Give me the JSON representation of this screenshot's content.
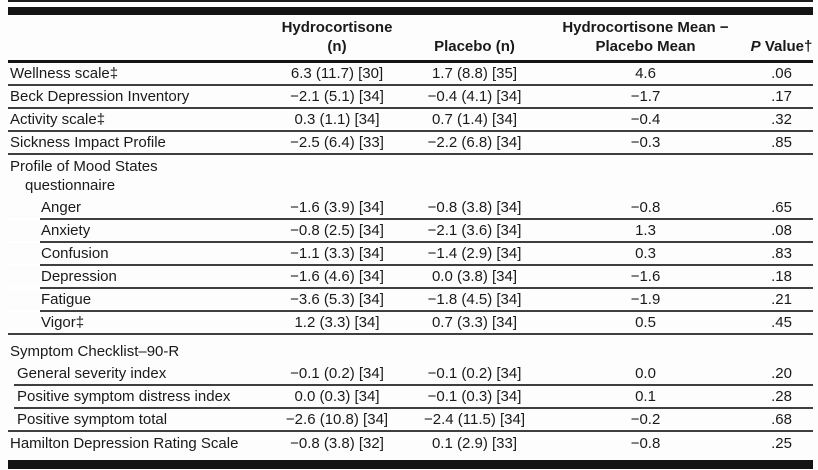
{
  "table": {
    "header": {
      "hydrocortisone_line1": "Hydrocortisone",
      "hydrocortisone_line2": "(n)",
      "placebo": "Placebo (n)",
      "diff_line1": "Hydrocortisone Mean −",
      "diff_line2": "Placebo Mean",
      "pvalue_p": "P",
      "pvalue_rest": " Value†"
    },
    "rows": [
      {
        "label": "Wellness scale‡",
        "indent": 0,
        "hydro": "6.3 (11.7) [30]",
        "placebo": "1.7 (8.8) [35]",
        "diff": "4.6",
        "p": ".06",
        "sep": "full"
      },
      {
        "label": "Beck Depression Inventory",
        "indent": 0,
        "hydro": "−2.1 (5.1) [34]",
        "placebo": "−0.4 (4.1) [34]",
        "diff": "−1.7",
        "p": ".17",
        "sep": "full"
      },
      {
        "label": "Activity scale‡",
        "indent": 0,
        "hydro": "0.3 (1.1) [34]",
        "placebo": "0.7 (1.4) [34]",
        "diff": "−0.4",
        "p": ".32",
        "sep": "full"
      },
      {
        "label": "Sickness Impact Profile",
        "indent": 0,
        "hydro": "−2.5 (6.4) [33]",
        "placebo": "−2.2 (6.8) [34]",
        "diff": "−0.3",
        "p": ".85",
        "sep": "full"
      },
      {
        "type": "group",
        "label": "Profile of Mood States",
        "label2": "questionnaire",
        "sep": "none"
      },
      {
        "label": "Anger",
        "indent": 2,
        "hydro": "−1.6 (3.9) [34]",
        "placebo": "−0.8 (3.8) [34]",
        "diff": "−0.8",
        "p": ".65",
        "sep": "indent2"
      },
      {
        "label": "Anxiety",
        "indent": 2,
        "hydro": "−0.8 (2.5) [34]",
        "placebo": "−2.1 (3.6) [34]",
        "diff": "1.3",
        "p": ".08",
        "sep": "indent2"
      },
      {
        "label": "Confusion",
        "indent": 2,
        "hydro": "−1.1 (3.3) [34]",
        "placebo": "−1.4 (2.9) [34]",
        "diff": "0.3",
        "p": ".83",
        "sep": "indent2"
      },
      {
        "label": "Depression",
        "indent": 2,
        "hydro": "−1.6 (4.6) [34]",
        "placebo": "0.0 (3.8) [34]",
        "diff": "−1.6",
        "p": ".18",
        "sep": "indent2"
      },
      {
        "label": "Fatigue",
        "indent": 2,
        "hydro": "−3.6 (5.3) [34]",
        "placebo": "−1.8 (4.5) [34]",
        "diff": "−1.9",
        "p": ".21",
        "sep": "indent2"
      },
      {
        "label": "Vigor‡",
        "indent": 2,
        "hydro": "1.2 (3.3) [34]",
        "placebo": "0.7 (3.3) [34]",
        "diff": "0.5",
        "p": ".45",
        "sep": "full"
      },
      {
        "type": "group",
        "label": "Symptom Checklist–90-R",
        "sep": "none"
      },
      {
        "label": "General severity index",
        "indent": 1,
        "hydro": "−0.1 (0.2) [34]",
        "placebo": "−0.1 (0.2) [34]",
        "diff": "0.0",
        "p": ".20",
        "sep": "indent1"
      },
      {
        "label": "Positive symptom distress index",
        "indent": 1,
        "hydro": "0.0 (0.3) [34]",
        "placebo": "−0.1 (0.3) [34]",
        "diff": "0.1",
        "p": ".28",
        "sep": "indent1"
      },
      {
        "label": "Positive symptom total",
        "indent": 1,
        "hydro": "−2.6 (10.8) [34]",
        "placebo": "−2.4 (11.5) [34]",
        "diff": "−0.2",
        "p": ".68",
        "sep": "full"
      },
      {
        "label": "Hamilton Depression Rating Scale",
        "indent": 0,
        "hydro": "−0.8 (3.8) [32]",
        "placebo": "0.1 (2.9) [33]",
        "diff": "−0.8",
        "p": ".25",
        "sep": "none"
      }
    ]
  }
}
